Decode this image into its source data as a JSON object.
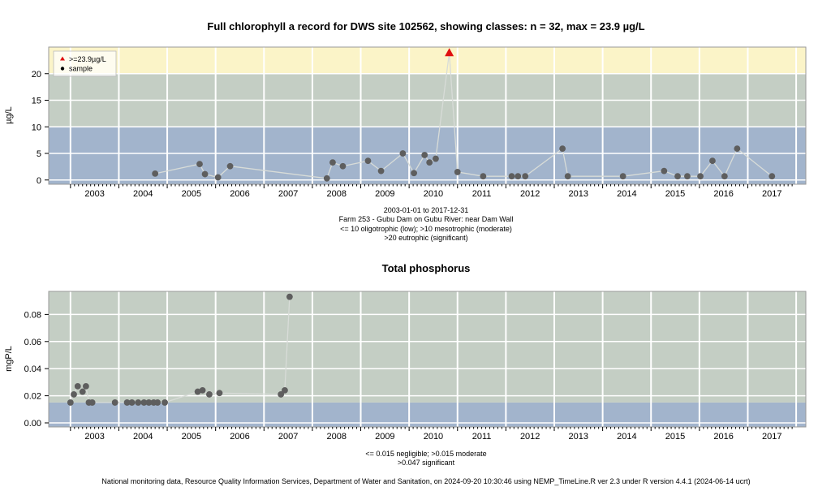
{
  "footer": "National monitoring data, Resource Quality Information Services, Department of Water and Sanitation, on 2024-09-20 10:30:46 using NEMP_TimeLine.R ver 2.3 under R version 4.4.1 (2024-06-14 ucrt)",
  "chart_data": [
    {
      "type": "scatter",
      "title": "Full chlorophyll a record for DWS site 102562, showing classes: n = 32, max = 23.9 µg/L",
      "ylabel": "µg/L",
      "xlim": [
        2002.55,
        2018.2
      ],
      "ylim": [
        -0.8,
        25
      ],
      "yticks": [
        "0",
        "5",
        "10",
        "15",
        "20"
      ],
      "ytick_values": [
        0,
        5,
        10,
        15,
        20
      ],
      "xticks": [
        "2003",
        "2004",
        "2005",
        "2006",
        "2007",
        "2008",
        "2009",
        "2010",
        "2011",
        "2012",
        "2013",
        "2014",
        "2015",
        "2016",
        "2017"
      ],
      "bands": [
        {
          "from": -0.8,
          "to": 10,
          "color": "#a2b4cc"
        },
        {
          "from": 10,
          "to": 20,
          "color": "#c4cec4"
        },
        {
          "from": 20,
          "to": 25,
          "color": "#fbf4c8"
        }
      ],
      "captions": [
        "2003-01-01 to 2017-12-31",
        "Farm 253 - Gubu Dam on Gubu River: near Dam Wall",
        "<= 10 oligotrophic (low); >10 mesotrophic (moderate)",
        ">20 eutrophic (significant)"
      ],
      "legend": {
        "position": "top-left",
        "entries": [
          ">=23.9µg/L",
          "sample"
        ]
      },
      "series": [
        {
          "name": "sample",
          "x": [
            2004.75,
            2005.67,
            2005.78,
            2006.05,
            2006.3,
            2008.3,
            2008.42,
            2008.63,
            2009.15,
            2009.42,
            2009.87,
            2010.1,
            2010.32,
            2010.42,
            2010.55,
            2011.0,
            2011.53,
            2012.12,
            2012.25,
            2012.4,
            2013.17,
            2013.28,
            2014.42,
            2015.27,
            2015.55,
            2015.75,
            2016.02,
            2016.27,
            2016.52,
            2016.78,
            2017.5
          ],
          "y": [
            1.2,
            3.0,
            1.1,
            0.5,
            2.6,
            0.3,
            3.3,
            2.6,
            3.6,
            1.7,
            5.0,
            1.3,
            4.7,
            3.3,
            4.0,
            1.5,
            0.7,
            0.7,
            0.7,
            0.7,
            5.9,
            0.7,
            0.7,
            1.7,
            0.7,
            0.7,
            0.7,
            3.6,
            0.7,
            5.9,
            0.7
          ]
        },
        {
          "name": ">=23.9µg/L",
          "x": [
            2010.83
          ],
          "y": [
            23.9
          ],
          "color": "#e01010"
        }
      ]
    },
    {
      "type": "scatter",
      "title": "Total phosphorus",
      "ylabel": "mgP/L",
      "xlim": [
        2002.55,
        2018.2
      ],
      "ylim": [
        -0.003,
        0.097
      ],
      "yticks": [
        "0.00",
        "0.02",
        "0.04",
        "0.06",
        "0.08"
      ],
      "ytick_values": [
        0,
        0.02,
        0.04,
        0.06,
        0.08
      ],
      "xticks": [
        "2003",
        "2004",
        "2005",
        "2006",
        "2007",
        "2008",
        "2009",
        "2010",
        "2011",
        "2012",
        "2013",
        "2014",
        "2015",
        "2016",
        "2017"
      ],
      "bands": [
        {
          "from": -0.003,
          "to": 0.015,
          "color": "#a2b4cc"
        },
        {
          "from": 0.015,
          "to": 0.097,
          "color": "#c4cec4"
        }
      ],
      "captions": [
        "<= 0.015 negligible; >0.015 moderate",
        ">0.047 significant"
      ],
      "series": [
        {
          "x": [
            2003.0,
            2003.07,
            2003.15,
            2003.25,
            2003.32,
            2003.38,
            2003.45,
            2003.92,
            2004.17,
            2004.27,
            2004.4,
            2004.52,
            2004.62,
            2004.72,
            2004.8,
            2004.95,
            2005.63,
            2005.73,
            2005.87,
            2006.08,
            2007.35,
            2007.43,
            2007.53
          ],
          "y": [
            0.015,
            0.021,
            0.027,
            0.023,
            0.027,
            0.015,
            0.015,
            0.015,
            0.015,
            0.015,
            0.015,
            0.015,
            0.015,
            0.015,
            0.015,
            0.015,
            0.023,
            0.024,
            0.021,
            0.022,
            0.021,
            0.024,
            0.093
          ]
        }
      ]
    }
  ]
}
